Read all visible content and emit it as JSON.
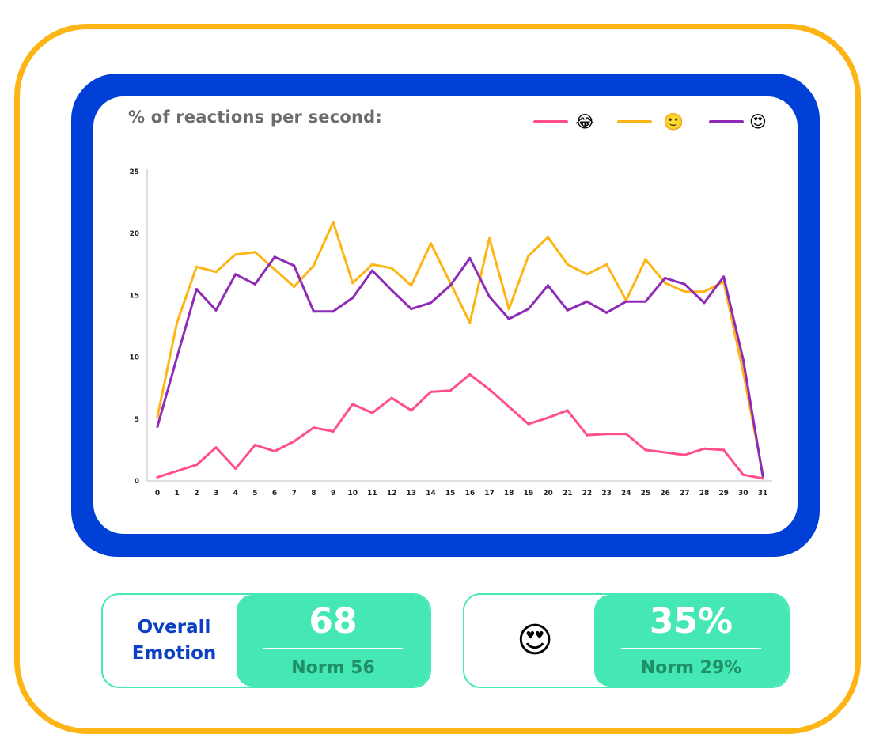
{
  "colors": {
    "outer_border": "#FDB515",
    "chart_frame": "#0040D6",
    "card_accent": "#45E8B5",
    "label_blue": "#0B3FC4",
    "norm_text": "#1E8F66"
  },
  "chart_data": {
    "type": "line",
    "title": "% of reactions per second:",
    "x": [
      0,
      1,
      2,
      3,
      4,
      5,
      6,
      7,
      8,
      9,
      10,
      11,
      12,
      13,
      14,
      15,
      16,
      17,
      18,
      19,
      20,
      21,
      22,
      23,
      24,
      25,
      26,
      27,
      28,
      29,
      30,
      31
    ],
    "ylim": [
      0,
      25
    ],
    "yticks": [
      0,
      5,
      10,
      15,
      20,
      25
    ],
    "series": [
      {
        "name": "😂",
        "color": "#FF4F8B",
        "values": [
          0.3,
          0.8,
          1.3,
          2.7,
          1.0,
          2.9,
          2.4,
          3.2,
          4.3,
          4.0,
          6.2,
          5.5,
          6.7,
          5.7,
          7.2,
          7.3,
          8.6,
          7.4,
          6.0,
          4.6,
          5.1,
          5.7,
          3.7,
          3.8,
          3.8,
          2.5,
          2.3,
          2.1,
          2.6,
          2.5,
          0.5,
          0.2
        ]
      },
      {
        "name": "🙂",
        "color": "#FDB515",
        "values": [
          5.2,
          12.8,
          17.3,
          16.9,
          18.3,
          18.5,
          17.1,
          15.7,
          17.4,
          20.9,
          16.0,
          17.5,
          17.2,
          15.8,
          19.2,
          16.0,
          12.8,
          19.6,
          13.9,
          18.2,
          19.7,
          17.5,
          16.7,
          17.5,
          14.6,
          17.9,
          16.0,
          15.3,
          15.3,
          16.1,
          8.8,
          0.6
        ]
      },
      {
        "name": "😍",
        "color": "#8E2AB6",
        "values": [
          4.4,
          10.0,
          15.5,
          13.8,
          16.7,
          15.9,
          18.1,
          17.4,
          13.7,
          13.7,
          14.8,
          17.0,
          15.4,
          13.9,
          14.4,
          15.8,
          18.0,
          14.9,
          13.1,
          13.9,
          15.8,
          13.8,
          14.5,
          13.6,
          14.5,
          14.5,
          16.4,
          15.9,
          14.4,
          16.5,
          9.8,
          0.4
        ]
      }
    ]
  },
  "stats": [
    {
      "label": "Overall Emotion",
      "value": "68",
      "norm": "Norm 56"
    },
    {
      "emoji": "😍",
      "value": "35%",
      "norm": "Norm 29%"
    }
  ]
}
